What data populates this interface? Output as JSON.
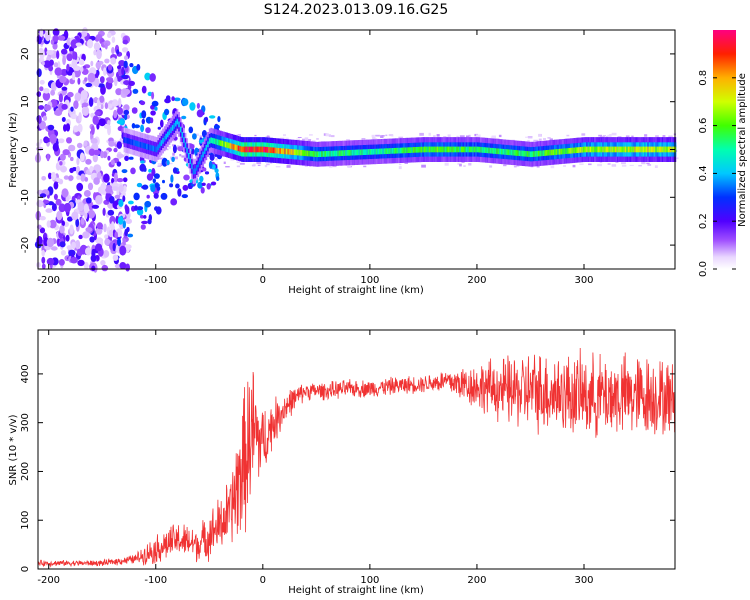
{
  "title": "S124.2023.013.09.16.G25",
  "chart_data": [
    {
      "type": "heatmap",
      "xlabel": "Height of straight line (km)",
      "ylabel": "Frequency (Hz)",
      "xlim": [
        -210,
        385
      ],
      "ylim": [
        -25,
        25
      ],
      "xticks": [
        -200,
        -100,
        0,
        100,
        200,
        300
      ],
      "yticks": [
        -20,
        -10,
        0,
        10,
        20
      ],
      "colorbar": {
        "label": "Normalized spectral amplitude",
        "range": [
          0,
          1
        ],
        "ticks": [
          0.0,
          0.2,
          0.4,
          0.6,
          0.8
        ]
      },
      "ridge": [
        {
          "x": -130,
          "y": 2,
          "amp": 0.3
        },
        {
          "x": -100,
          "y": 0,
          "amp": 0.35
        },
        {
          "x": -80,
          "y": 6,
          "amp": 0.4
        },
        {
          "x": -65,
          "y": -5,
          "amp": 0.35
        },
        {
          "x": -50,
          "y": 2,
          "amp": 0.45
        },
        {
          "x": -20,
          "y": 0,
          "amp": 0.9
        },
        {
          "x": 0,
          "y": 0,
          "amp": 0.95
        },
        {
          "x": 50,
          "y": -1,
          "amp": 0.55
        },
        {
          "x": 100,
          "y": -0.5,
          "amp": 0.5
        },
        {
          "x": 150,
          "y": 0,
          "amp": 0.6
        },
        {
          "x": 200,
          "y": 0,
          "amp": 0.55
        },
        {
          "x": 250,
          "y": -1,
          "amp": 0.55
        },
        {
          "x": 300,
          "y": 0,
          "amp": 0.65
        },
        {
          "x": 350,
          "y": 0,
          "amp": 0.7
        },
        {
          "x": 385,
          "y": 0,
          "amp": 0.7
        }
      ],
      "noise_region": {
        "x": [
          -210,
          -125
        ],
        "y": [
          -25,
          25
        ]
      }
    },
    {
      "type": "line",
      "xlabel": "Height of straight line (km)",
      "ylabel": "SNR (10 * v/v)",
      "xlim": [
        -210,
        385
      ],
      "ylim": [
        0,
        490
      ],
      "xticks": [
        -200,
        -100,
        0,
        100,
        200,
        300
      ],
      "yticks": [
        0,
        100,
        200,
        300,
        400
      ],
      "series": [
        {
          "color": "#f03232",
          "x": [
            -210,
            -150,
            -120,
            -100,
            -80,
            -60,
            -40,
            -30,
            -20,
            -10,
            0,
            10,
            20,
            30,
            40,
            60,
            80,
            100,
            120,
            150,
            170,
            200,
            230,
            260,
            300,
            330,
            360,
            385
          ],
          "y": [
            12,
            12,
            20,
            40,
            60,
            50,
            90,
            120,
            200,
            280,
            260,
            300,
            330,
            350,
            365,
            365,
            370,
            370,
            375,
            380,
            385,
            375,
            365,
            365,
            355,
            355,
            355,
            350
          ],
          "spread": [
            5,
            5,
            8,
            25,
            30,
            30,
            50,
            60,
            120,
            130,
            60,
            40,
            30,
            20,
            15,
            15,
            15,
            15,
            15,
            15,
            20,
            40,
            60,
            70,
            70,
            70,
            70,
            60
          ]
        }
      ]
    }
  ]
}
